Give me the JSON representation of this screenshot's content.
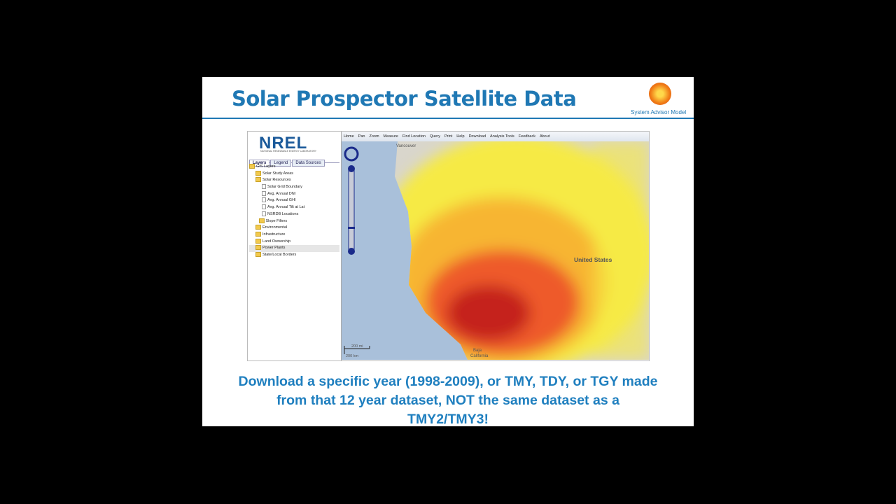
{
  "slide": {
    "title": "Solar Prospector Satellite Data",
    "logo_caption": "System Advisor Model",
    "caption_lines": [
      "Download a specific year (1998-2009), or TMY, TDY, or TGY made",
      "from that 12 year dataset, NOT the same dataset as a",
      "TMY2/TMY3!"
    ]
  },
  "app": {
    "logo": "NREL",
    "logo_subtitle": "NATIONAL RENEWABLE ENERGY LABORATORY",
    "tabs": [
      "Layers",
      "Legend",
      "Data Sources"
    ],
    "toolbar": [
      "Home",
      "Pan",
      "Zoom",
      "Measure",
      "Find Location",
      "Query",
      "Print",
      "Help",
      "Download",
      "Analysis Tools",
      "Feedback",
      "About"
    ],
    "tree": [
      "GIS Layers",
      "Solar Study Areas",
      "Solar Resources",
      "Solar Grid Boundary",
      "Avg. Annual DNI",
      "Avg. Annual GHI",
      "Avg. Annual Tilt at Lat",
      "NSRDB Locations",
      "Slope Filters",
      "Environmental",
      "Infrastructure",
      "Land Ownership",
      "Power Plants",
      "State/Local Borders"
    ],
    "map_labels": [
      "Vancouver",
      "United States",
      "Baja",
      "California"
    ],
    "scale": [
      "200 mi",
      "200 km"
    ]
  }
}
